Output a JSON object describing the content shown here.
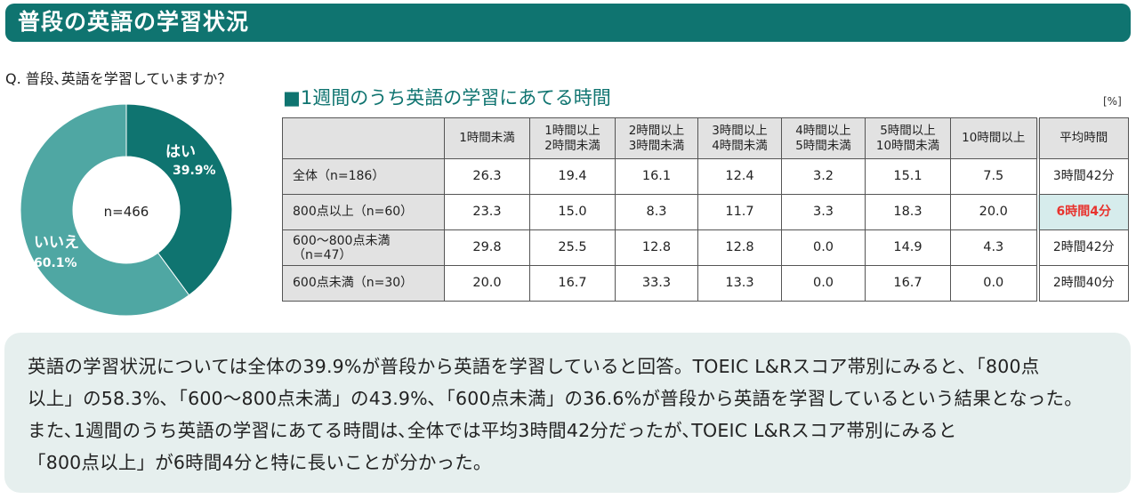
{
  "header": {
    "title": "普段の英語の学習状況"
  },
  "question": "Q. 普段､英語を学習していますか？",
  "chart_data": [
    {
      "type": "pie",
      "center_label": "n=466",
      "slices": [
        {
          "label": "はい",
          "value": 39.9,
          "value_text": "39.9%",
          "color": "#0f7470"
        },
        {
          "label": "いいえ",
          "value": 60.1,
          "value_text": "60.1%",
          "color": "#4fa7a3"
        }
      ]
    },
    {
      "type": "table",
      "title": "■1週間のうち英語の学習にあてる時間",
      "unit": "[%]",
      "columns": [
        "1時間未満",
        "1時間以上\n2時間未満",
        "2時間以上\n3時間未満",
        "3時間以上\n4時間未満",
        "4時間以上\n5時間未満",
        "5時間以上\n10時間未満",
        "10時間以上"
      ],
      "avg_column": "平均時間",
      "rows": [
        {
          "label": "全体（n=186）",
          "values": [
            "26.3",
            "19.4",
            "16.1",
            "12.4",
            "3.2",
            "15.1",
            "7.5"
          ],
          "avg": "3時間42分"
        },
        {
          "label": "800点以上（n=60）",
          "values": [
            "23.3",
            "15.0",
            "8.3",
            "11.7",
            "3.3",
            "18.3",
            "20.0"
          ],
          "avg": "6時間4分"
        },
        {
          "label": "600～800点未満\n（n=47）",
          "values": [
            "29.8",
            "25.5",
            "12.8",
            "12.8",
            "0.0",
            "14.9",
            "4.3"
          ],
          "avg": "2時間42分"
        },
        {
          "label": "600点未満（n=30）",
          "values": [
            "20.0",
            "16.7",
            "33.3",
            "13.3",
            "0.0",
            "16.7",
            "0.0"
          ],
          "avg": "2時間40分"
        }
      ],
      "highlight_row": 1,
      "highlight_color": "#e8332e"
    }
  ],
  "summary": {
    "lines": [
      "英語の学習状況については全体の39.9%が普段から英語を学習していると回答。TOEIC L&Rスコア帯別にみると､「800点",
      "以上」の58.3%､「600～800点未満」の43.9%､「600点未満」の36.6%が普段から英語を学習しているという結果となった。",
      "また､1週間のうち英語の学習にあてる時間は､全体では平均3時間42分だったが､TOEIC L&Rスコア帯別にみると",
      "「800点以上」が6時間4分と特に長いことが分かった。"
    ]
  }
}
